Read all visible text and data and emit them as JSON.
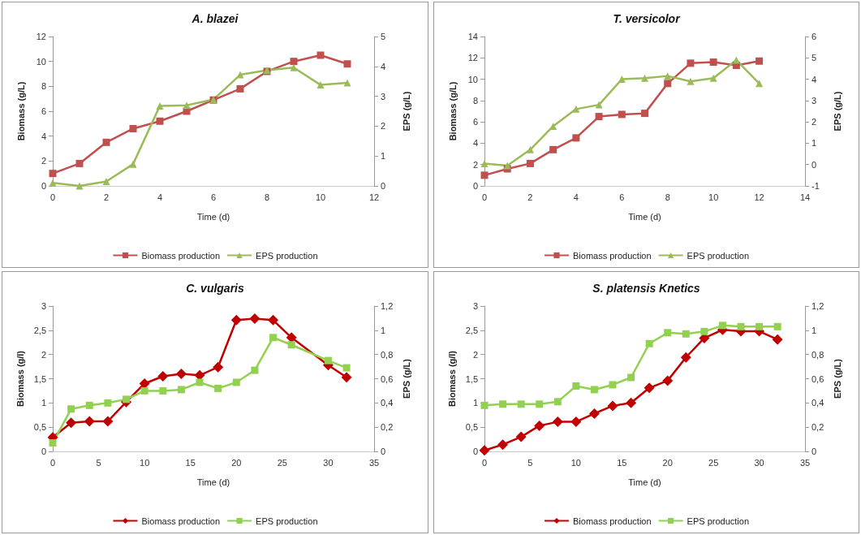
{
  "chart_data": [
    {
      "type": "line",
      "title": "A. blazei",
      "xlabel": "Time (d)",
      "ylabel": "Biomass (g/L)",
      "y2label": "EPS (g/L)",
      "x": [
        0,
        1,
        2,
        3,
        4,
        5,
        6,
        7,
        8,
        9,
        10,
        11
      ],
      "xlim": [
        0,
        12
      ],
      "xticks": [
        0,
        2,
        4,
        6,
        8,
        10,
        12
      ],
      "ylim": [
        0,
        12
      ],
      "yticks": [
        0,
        2,
        4,
        6,
        8,
        10,
        12
      ],
      "y2lim": [
        0,
        5
      ],
      "y2ticks": [
        0,
        1,
        2,
        3,
        4,
        5
      ],
      "grid": false,
      "legend": "bottom",
      "series": [
        {
          "name": "Biomass production",
          "color": "#c0504d",
          "marker": "square",
          "values": [
            1.0,
            1.8,
            3.5,
            4.6,
            5.2,
            6.0,
            6.9,
            7.8,
            9.2,
            10.0,
            10.5,
            9.8
          ]
        },
        {
          "name": "EPS production",
          "color": "#9bbb59",
          "marker": "triangle",
          "axis": "y2",
          "values": [
            0.1,
            0.0,
            0.15,
            0.73,
            2.68,
            2.7,
            2.89,
            3.72,
            3.87,
            3.96,
            3.38,
            3.45
          ]
        }
      ]
    },
    {
      "type": "line",
      "title": "T. versicolor",
      "xlabel": "Time (d)",
      "ylabel": "Biomass (g/L)",
      "y2label": "EPS (g/L)",
      "x": [
        0,
        1,
        2,
        3,
        4,
        5,
        6,
        7,
        8,
        9,
        10,
        11,
        12
      ],
      "xlim": [
        0,
        14
      ],
      "xticks": [
        0,
        2,
        4,
        6,
        8,
        10,
        12,
        14
      ],
      "ylim": [
        0,
        14
      ],
      "yticks": [
        0,
        2,
        4,
        6,
        8,
        10,
        12,
        14
      ],
      "y2lim": [
        -1,
        6
      ],
      "y2ticks": [
        -1,
        0,
        1,
        2,
        3,
        4,
        5,
        6
      ],
      "grid": false,
      "legend": "bottom",
      "series": [
        {
          "name": "Biomass production",
          "color": "#c0504d",
          "marker": "square",
          "values": [
            1.0,
            1.6,
            2.1,
            3.4,
            4.5,
            6.5,
            6.7,
            6.8,
            9.6,
            11.5,
            11.6,
            11.3,
            11.7
          ]
        },
        {
          "name": "EPS production",
          "color": "#9bbb59",
          "marker": "triangle",
          "axis": "y2",
          "values": [
            0.05,
            -0.05,
            0.7,
            1.8,
            2.6,
            2.8,
            4.0,
            4.05,
            4.15,
            3.9,
            4.05,
            4.9,
            3.8
          ]
        }
      ]
    },
    {
      "type": "line",
      "title": "C. vulgaris",
      "xlabel": "Time (d)",
      "ylabel": "Biomass (g/l)",
      "y2label": "EPS (g/L)",
      "x": [
        0,
        2,
        4,
        6,
        8,
        10,
        12,
        14,
        16,
        18,
        20,
        22,
        24,
        26,
        30,
        32
      ],
      "xlim": [
        0,
        35
      ],
      "xticks": [
        0,
        5,
        10,
        15,
        20,
        25,
        30,
        35
      ],
      "ylim": [
        0,
        3
      ],
      "yticks": [
        0,
        {
          "value": 0.5,
          "label": "0,5"
        },
        1,
        {
          "value": 1.5,
          "label": "1,5"
        },
        2,
        {
          "value": 2.5,
          "label": "2,5"
        },
        3
      ],
      "y2lim": [
        0,
        1.2
      ],
      "y2ticks": [
        0,
        {
          "value": 0.2,
          "label": "0,2"
        },
        {
          "value": 0.4,
          "label": "0,4"
        },
        {
          "value": 0.6,
          "label": "0,6"
        },
        {
          "value": 0.8,
          "label": "0,8"
        },
        1,
        {
          "value": 1.2,
          "label": "1,2"
        }
      ],
      "grid": false,
      "legend": "bottom",
      "series": [
        {
          "name": "Biomass production",
          "color": "#c00000",
          "marker": "diamond",
          "values": [
            0.29,
            0.59,
            0.62,
            0.62,
            1.02,
            1.4,
            1.55,
            1.6,
            1.57,
            1.74,
            2.71,
            2.74,
            2.71,
            2.35,
            1.78,
            1.53
          ]
        },
        {
          "name": "EPS production",
          "color": "#92d050",
          "marker": "square",
          "axis": "y2",
          "values": [
            0.07,
            0.35,
            0.38,
            0.4,
            0.43,
            0.5,
            0.5,
            0.51,
            0.57,
            0.52,
            0.57,
            0.67,
            0.94,
            0.88,
            0.75,
            0.69
          ]
        }
      ]
    },
    {
      "type": "line",
      "title": "S. platensis Knetics",
      "xlabel": "Time (d)",
      "ylabel": "Biomass (g/l)",
      "y2label": "EPS (g/L)",
      "x": [
        0,
        2,
        4,
        6,
        8,
        10,
        12,
        14,
        16,
        18,
        20,
        22,
        24,
        26,
        28,
        30,
        32
      ],
      "xlim": [
        0,
        35
      ],
      "xticks": [
        0,
        5,
        10,
        15,
        20,
        25,
        30,
        35
      ],
      "ylim": [
        0,
        3
      ],
      "yticks": [
        0,
        {
          "value": 0.5,
          "label": "0,5"
        },
        1,
        {
          "value": 1.5,
          "label": "1,5"
        },
        2,
        {
          "value": 2.5,
          "label": "2,5"
        },
        3
      ],
      "y2lim": [
        0,
        1.2
      ],
      "y2ticks": [
        0,
        {
          "value": 0.2,
          "label": "0,2"
        },
        {
          "value": 0.4,
          "label": "0,4"
        },
        {
          "value": 0.6,
          "label": "0,6"
        },
        {
          "value": 0.8,
          "label": "0,8"
        },
        1,
        {
          "value": 1.2,
          "label": "1,2"
        }
      ],
      "grid": false,
      "legend": "bottom",
      "series": [
        {
          "name": "Biomass production",
          "color": "#c00000",
          "marker": "diamond",
          "values": [
            0.02,
            0.14,
            0.3,
            0.53,
            0.61,
            0.61,
            0.78,
            0.94,
            1.0,
            1.31,
            1.46,
            1.94,
            2.34,
            2.51,
            2.48,
            2.48,
            2.31
          ]
        },
        {
          "name": "EPS production",
          "color": "#92d050",
          "marker": "square",
          "axis": "y2",
          "values": [
            0.38,
            0.39,
            0.39,
            0.39,
            0.41,
            0.54,
            0.51,
            0.55,
            0.61,
            0.89,
            0.98,
            0.97,
            0.99,
            1.04,
            1.03,
            1.03,
            1.03
          ]
        }
      ]
    }
  ]
}
